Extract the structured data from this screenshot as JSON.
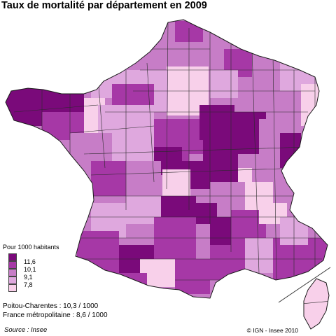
{
  "title": "Taux de mortalité par département en 2009",
  "legend": {
    "title": "Pour 1000 habitants",
    "thresholds": [
      "11,6",
      "10,1",
      "9,1",
      "7,8"
    ],
    "classes": [
      {
        "color": "#7a0a7a"
      },
      {
        "color": "#a638a6"
      },
      {
        "color": "#c77dc7"
      },
      {
        "color": "#dfa8de"
      },
      {
        "color": "#f8d0ea"
      }
    ]
  },
  "stats": [
    "Poitou-Charentes : 10,3 / 1000",
    "France métropolitaine : 8,6 / 1000"
  ],
  "source": "Source : Insee",
  "credit": "© IGN - Insee 2010"
}
